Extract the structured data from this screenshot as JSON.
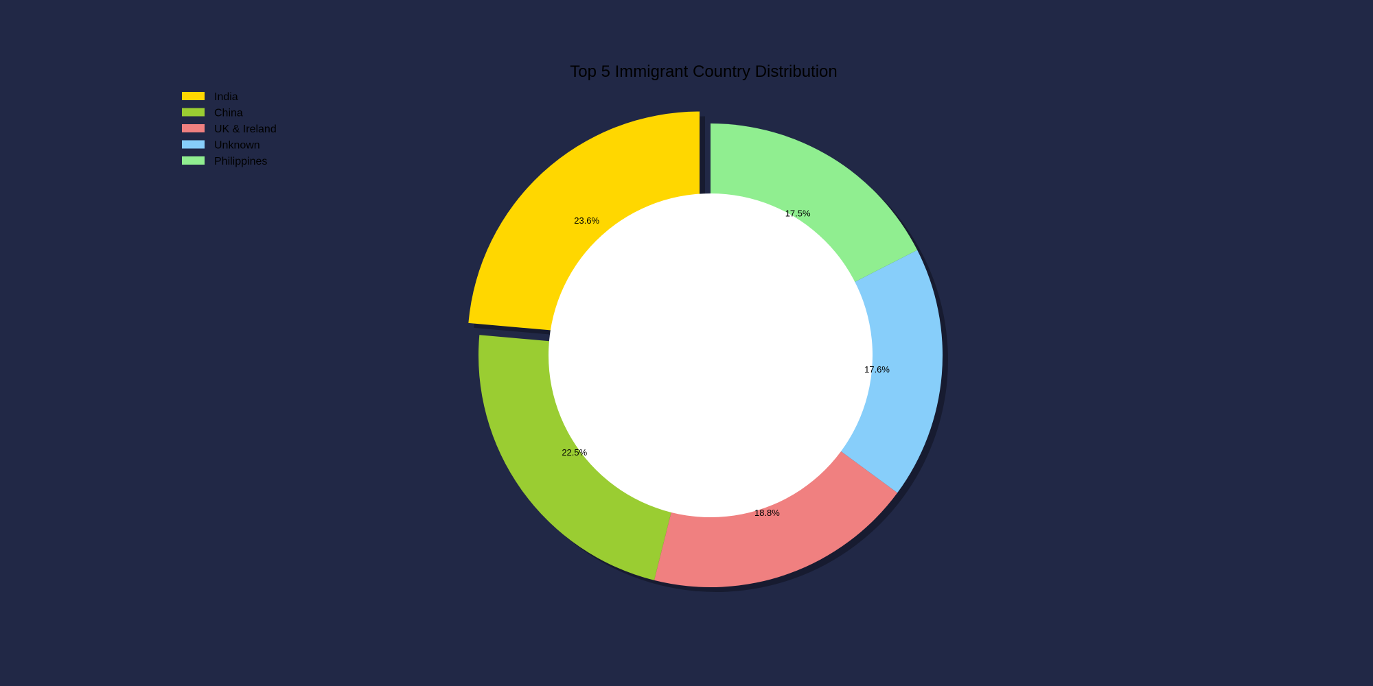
{
  "chart_data": {
    "type": "pie",
    "variant": "donut",
    "title": "Top 5 Immigrant Country Distribution",
    "start_angle_deg": 90,
    "direction": "counterclockwise",
    "exploded_slice": "India",
    "legend_position": "top-left",
    "background_color": "#212846",
    "center_hole_color": "#ffffff",
    "slices": [
      {
        "label": "India",
        "value": 23.6,
        "pct_label": "23.6%",
        "color": "#FFD700"
      },
      {
        "label": "China",
        "value": 22.5,
        "pct_label": "22.5%",
        "color": "#9ACD32"
      },
      {
        "label": "UK & Ireland",
        "value": 18.8,
        "pct_label": "18.8%",
        "color": "#F08080"
      },
      {
        "label": "Unknown",
        "value": 17.6,
        "pct_label": "17.6%",
        "color": "#87CEFA"
      },
      {
        "label": "Philippines",
        "value": 17.5,
        "pct_label": "17.5%",
        "color": "#90EE90"
      }
    ]
  }
}
